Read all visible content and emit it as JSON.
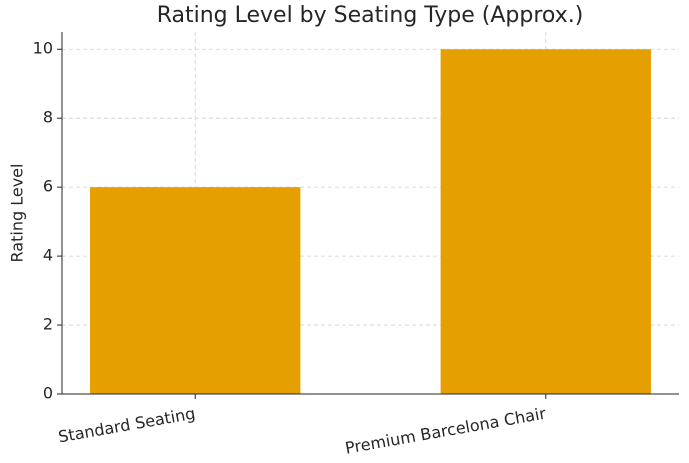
{
  "chart_data": {
    "type": "bar",
    "title": "Rating Level by Seating Type (Approx.)",
    "y_label": "Rating Level",
    "categories": [
      "Standard Seating",
      "Premium Barcelona Chair"
    ],
    "values": [
      6,
      10
    ],
    "color": "#E69F00",
    "ylim": [
      0,
      10.5
    ],
    "yticks": [
      0,
      2,
      4,
      6,
      8,
      10
    ],
    "grid": true
  }
}
